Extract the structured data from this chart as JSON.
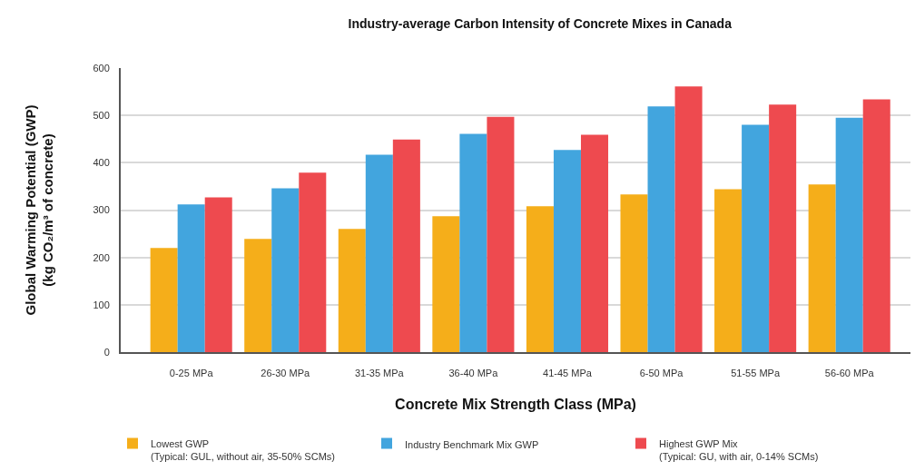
{
  "chart_data": {
    "type": "bar",
    "title": "Industry-average Carbon Intensity of Concrete Mixes in Canada",
    "xlabel": "Concrete Mix Strength Class (MPa)",
    "ylabel": "Global Warming Potential (GWP)\n(kg CO₂/m³ of concrete)",
    "categories": [
      "0-25 MPa",
      "26-30 MPa",
      "31-35 MPa",
      "36-40 MPa",
      "41-45 MPa",
      "6-50 MPa",
      "51-55 MPa",
      "56-60 MPa"
    ],
    "series": [
      {
        "name": "Lowest GWP\n(Typical: GUL, without air, 35-50% SCMs)",
        "color": "#f5ae1a",
        "values": [
          220,
          239,
          260,
          287,
          308,
          333,
          344,
          354
        ]
      },
      {
        "name": "Industry Benchmark Mix GWP",
        "color": "#42a5de",
        "values": [
          312,
          346,
          417,
          461,
          427,
          519,
          480,
          495
        ]
      },
      {
        "name": "Highest GWP Mix\n(Typical: GU, with air, 0-14% SCMs)",
        "color": "#ee4a4f",
        "values": [
          327,
          379,
          449,
          497,
          459,
          561,
          523,
          534
        ]
      }
    ],
    "ylim": [
      0,
      600
    ],
    "yticks": [
      0,
      100,
      200,
      300,
      400,
      500,
      600
    ],
    "grid": "y",
    "legend": "bottom"
  }
}
